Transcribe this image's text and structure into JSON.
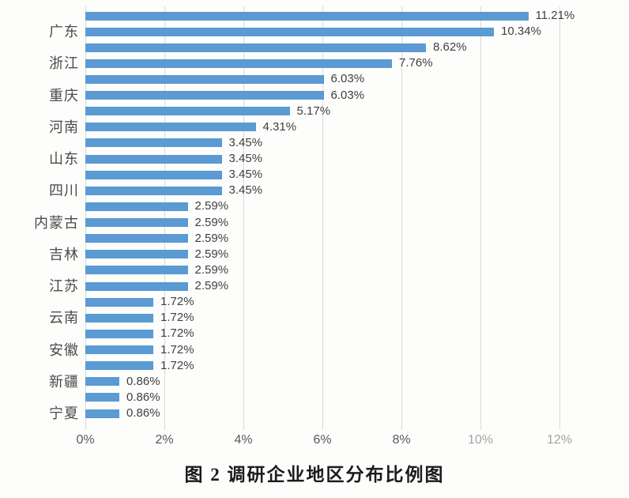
{
  "figure": {
    "caption": "图 2  调研企业地区分布比例图"
  },
  "chart_data": {
    "type": "bar",
    "orientation": "horizontal",
    "title": "图 2  调研企业地区分布比例图",
    "xlabel": "",
    "ylabel": "",
    "xlim": [
      0,
      12
    ],
    "x_ticks": [
      "0%",
      "2%",
      "4%",
      "6%",
      "8%",
      "10%",
      "12%"
    ],
    "grid": true,
    "legend": false,
    "bar_color": "#5b9ad2",
    "gridline_color": "#d9d9d9",
    "values": [
      11.21,
      10.34,
      8.62,
      7.76,
      6.03,
      6.03,
      5.17,
      4.31,
      3.45,
      3.45,
      3.45,
      3.45,
      2.59,
      2.59,
      2.59,
      2.59,
      2.59,
      2.59,
      1.72,
      1.72,
      1.72,
      1.72,
      1.72,
      0.86,
      0.86,
      0.86
    ],
    "value_labels": [
      "11.21%",
      "10.34%",
      "8.62%",
      "7.76%",
      "6.03%",
      "6.03%",
      "5.17%",
      "4.31%",
      "3.45%",
      "3.45%",
      "3.45%",
      "3.45%",
      "2.59%",
      "2.59%",
      "2.59%",
      "2.59%",
      "2.59%",
      "2.59%",
      "1.72%",
      "1.72%",
      "1.72%",
      "1.72%",
      "1.72%",
      "0.86%",
      "0.86%",
      "0.86%"
    ],
    "visible_category_labels": [
      "广东",
      "浙江",
      "重庆",
      "河南",
      "山东",
      "四川",
      "内蒙古",
      "吉林",
      "江苏",
      "云南",
      "安徽",
      "新疆",
      "宁夏"
    ],
    "category_label_interval": 2,
    "category_label_first_bar_index": 1
  }
}
